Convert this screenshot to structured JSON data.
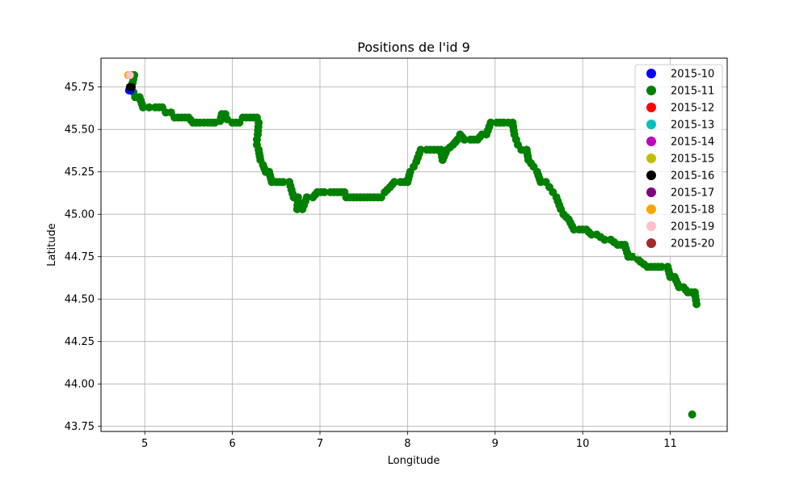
{
  "chart_data": {
    "type": "scatter",
    "title": "Positions de l'id 9",
    "xlabel": "Longitude",
    "ylabel": "Latitude",
    "xlim": [
      4.5,
      11.65
    ],
    "ylim": [
      43.72,
      45.92
    ],
    "xticks": [
      5,
      6,
      7,
      8,
      9,
      10,
      11
    ],
    "yticks": [
      43.75,
      44.0,
      44.25,
      44.5,
      44.75,
      45.0,
      45.25,
      45.5,
      45.75
    ],
    "ytick_labels": [
      "43.75",
      "44.00",
      "44.25",
      "44.50",
      "44.75",
      "45.00",
      "45.25",
      "45.50",
      "45.75"
    ],
    "xtick_labels": [
      "5",
      "6",
      "7",
      "8",
      "9",
      "10",
      "11"
    ],
    "grid": true,
    "legend_position": "top-right",
    "series": [
      {
        "name": "2015-10",
        "color": "#0000ff",
        "points": [
          [
            4.82,
            45.73
          ],
          [
            4.84,
            45.73
          ]
        ]
      },
      {
        "name": "2015-11",
        "color": "#008000",
        "points": [
          [
            4.85,
            45.82
          ],
          [
            4.88,
            45.82
          ],
          [
            4.85,
            45.75
          ],
          [
            4.87,
            45.72
          ],
          [
            4.89,
            45.69
          ],
          [
            4.94,
            45.69
          ],
          [
            4.98,
            45.63
          ],
          [
            5.05,
            45.63
          ],
          [
            5.12,
            45.63
          ],
          [
            5.2,
            45.63
          ],
          [
            5.24,
            45.6
          ],
          [
            5.3,
            45.6
          ],
          [
            5.34,
            45.57
          ],
          [
            5.42,
            45.57
          ],
          [
            5.5,
            45.57
          ],
          [
            5.55,
            45.54
          ],
          [
            5.63,
            45.54
          ],
          [
            5.72,
            45.54
          ],
          [
            5.8,
            45.54
          ],
          [
            5.86,
            45.55
          ],
          [
            5.88,
            45.59
          ],
          [
            5.92,
            45.59
          ],
          [
            5.94,
            45.56
          ],
          [
            6.0,
            45.54
          ],
          [
            6.08,
            45.54
          ],
          [
            6.12,
            45.57
          ],
          [
            6.2,
            45.57
          ],
          [
            6.28,
            45.57
          ],
          [
            6.3,
            45.54
          ],
          [
            6.29,
            45.47
          ],
          [
            6.28,
            45.44
          ],
          [
            6.28,
            45.41
          ],
          [
            6.3,
            45.38
          ],
          [
            6.32,
            45.32
          ],
          [
            6.35,
            45.29
          ],
          [
            6.38,
            45.25
          ],
          [
            6.42,
            45.25
          ],
          [
            6.45,
            45.19
          ],
          [
            6.5,
            45.19
          ],
          [
            6.58,
            45.19
          ],
          [
            6.65,
            45.19
          ],
          [
            6.7,
            45.1
          ],
          [
            6.75,
            45.1
          ],
          [
            6.74,
            45.03
          ],
          [
            6.8,
            45.03
          ],
          [
            6.85,
            45.1
          ],
          [
            6.92,
            45.1
          ],
          [
            6.97,
            45.13
          ],
          [
            7.05,
            45.13
          ],
          [
            7.12,
            45.13
          ],
          [
            7.2,
            45.13
          ],
          [
            7.28,
            45.13
          ],
          [
            7.3,
            45.1
          ],
          [
            7.38,
            45.1
          ],
          [
            7.46,
            45.1
          ],
          [
            7.54,
            45.1
          ],
          [
            7.62,
            45.1
          ],
          [
            7.7,
            45.1
          ],
          [
            7.74,
            45.13
          ],
          [
            7.8,
            45.16
          ],
          [
            7.85,
            45.19
          ],
          [
            7.92,
            45.19
          ],
          [
            8.0,
            45.19
          ],
          [
            8.03,
            45.25
          ],
          [
            8.07,
            45.28
          ],
          [
            8.1,
            45.31
          ],
          [
            8.15,
            45.38
          ],
          [
            8.22,
            45.38
          ],
          [
            8.3,
            45.38
          ],
          [
            8.38,
            45.38
          ],
          [
            8.4,
            45.32
          ],
          [
            8.45,
            45.38
          ],
          [
            8.52,
            45.41
          ],
          [
            8.57,
            45.44
          ],
          [
            8.6,
            45.47
          ],
          [
            8.65,
            45.44
          ],
          [
            8.72,
            45.44
          ],
          [
            8.8,
            45.44
          ],
          [
            8.85,
            45.47
          ],
          [
            8.9,
            45.47
          ],
          [
            8.95,
            45.54
          ],
          [
            9.02,
            45.54
          ],
          [
            9.1,
            45.54
          ],
          [
            9.2,
            45.54
          ],
          [
            9.22,
            45.47
          ],
          [
            9.24,
            45.44
          ],
          [
            9.26,
            45.41
          ],
          [
            9.3,
            45.38
          ],
          [
            9.36,
            45.38
          ],
          [
            9.38,
            45.32
          ],
          [
            9.44,
            45.28
          ],
          [
            9.48,
            45.25
          ],
          [
            9.52,
            45.19
          ],
          [
            9.58,
            45.19
          ],
          [
            9.62,
            45.16
          ],
          [
            9.66,
            45.13
          ],
          [
            9.7,
            45.1
          ],
          [
            9.75,
            45.03
          ],
          [
            9.78,
            45.0
          ],
          [
            9.84,
            44.97
          ],
          [
            9.9,
            44.91
          ],
          [
            9.96,
            44.91
          ],
          [
            10.04,
            44.91
          ],
          [
            10.1,
            44.88
          ],
          [
            10.16,
            44.88
          ],
          [
            10.25,
            44.85
          ],
          [
            10.32,
            44.85
          ],
          [
            10.4,
            44.82
          ],
          [
            10.48,
            44.82
          ],
          [
            10.52,
            44.75
          ],
          [
            10.6,
            44.75
          ],
          [
            10.66,
            44.72
          ],
          [
            10.74,
            44.69
          ],
          [
            10.82,
            44.69
          ],
          [
            10.9,
            44.69
          ],
          [
            10.97,
            44.69
          ],
          [
            11.0,
            44.63
          ],
          [
            11.05,
            44.63
          ],
          [
            11.1,
            44.57
          ],
          [
            11.15,
            44.57
          ],
          [
            11.2,
            44.54
          ],
          [
            11.28,
            44.54
          ],
          [
            11.3,
            44.47
          ],
          [
            11.25,
            43.82
          ]
        ]
      },
      {
        "name": "2015-12",
        "color": "#ff0000",
        "points": []
      },
      {
        "name": "2015-13",
        "color": "#00bfbf",
        "points": []
      },
      {
        "name": "2015-14",
        "color": "#bf00bf",
        "points": []
      },
      {
        "name": "2015-15",
        "color": "#bfbf00",
        "points": []
      },
      {
        "name": "2015-16",
        "color": "#000000",
        "points": [
          [
            4.83,
            45.75
          ],
          [
            4.85,
            45.75
          ]
        ]
      },
      {
        "name": "2015-17",
        "color": "#800080",
        "points": []
      },
      {
        "name": "2015-18",
        "color": "#ffa500",
        "points": [
          [
            4.81,
            45.82
          ]
        ]
      },
      {
        "name": "2015-19",
        "color": "#ffc0cb",
        "points": [
          [
            4.83,
            45.82
          ]
        ]
      },
      {
        "name": "2015-20",
        "color": "#a52a2a",
        "points": []
      }
    ]
  }
}
